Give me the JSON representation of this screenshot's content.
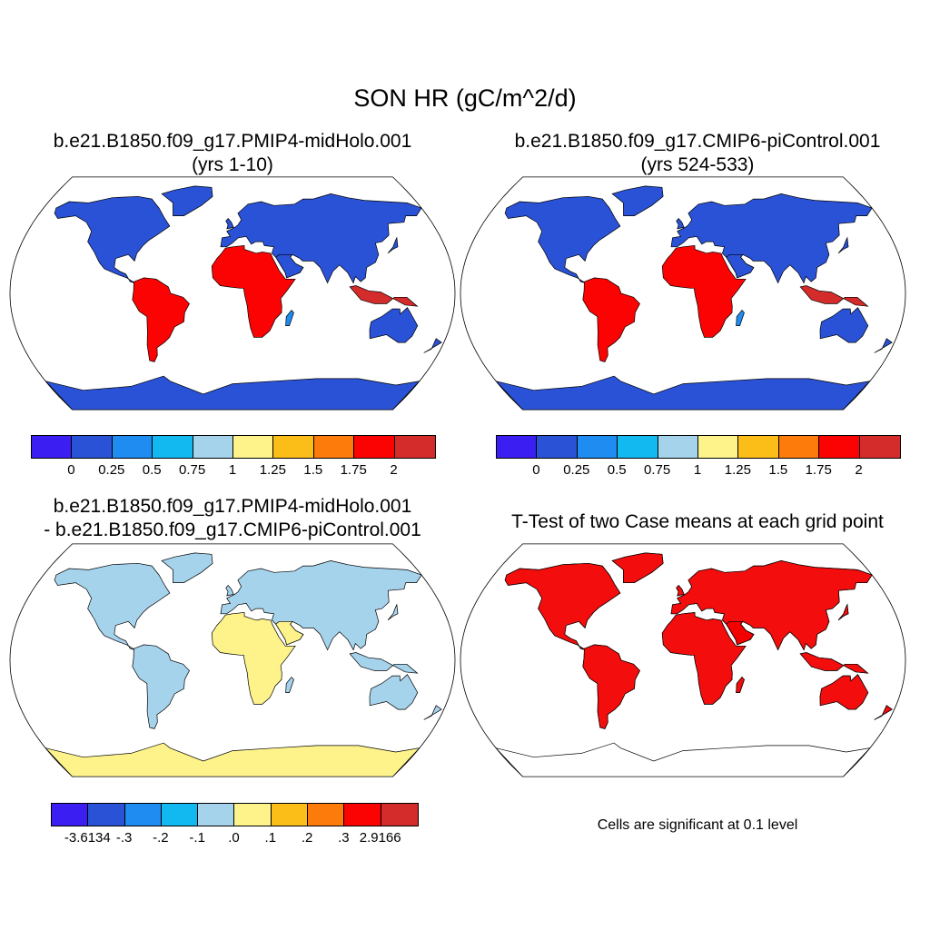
{
  "title": "SON HR (gC/m^2/d)",
  "panels": [
    {
      "id": "p1",
      "title_line1": "b.e21.B1850.f09_g17.PMIP4-midHolo.001",
      "title_line2": "(yrs 1-10)"
    },
    {
      "id": "p2",
      "title_line1": "b.e21.B1850.f09_g17.CMIP6-piControl.001",
      "title_line2": "(yrs 524-533)"
    },
    {
      "id": "p3",
      "title_line1": "b.e21.B1850.f09_g17.PMIP4-midHolo.001",
      "title_line2": "- b.e21.B1850.f09_g17.CMIP6-piControl.001"
    },
    {
      "id": "p4",
      "title_line1": "T-Test of two Case means at each grid point",
      "title_line2": ""
    }
  ],
  "colorbar_abs": {
    "colors": [
      "#3b1ff2",
      "#2a52d6",
      "#1e8cf0",
      "#12b9f0",
      "#a6d3ec",
      "#fef38a",
      "#fbbd18",
      "#fd7b0a",
      "#fc0303",
      "#d42b2b"
    ],
    "labels": [
      "0",
      "0.25",
      "0.5",
      "0.75",
      "1",
      "1.25",
      "1.5",
      "1.75",
      "2"
    ]
  },
  "colorbar_diff": {
    "colors": [
      "#3b1ff2",
      "#2a52d6",
      "#1e8cf0",
      "#12b9f0",
      "#a6d3ec",
      "#fef38a",
      "#fbbd18",
      "#fd7b0a",
      "#fc0303",
      "#d42b2b"
    ],
    "labels": [
      "-3.6134",
      "-.3",
      "-.2",
      "-.1",
      ".0",
      ".1",
      ".2",
      ".3",
      "2.9166"
    ]
  },
  "significance_note": "Cells are significant at 0.1 level",
  "significance_color": "#f20000",
  "map": {
    "projection": "Robinson",
    "region": "global land"
  }
}
